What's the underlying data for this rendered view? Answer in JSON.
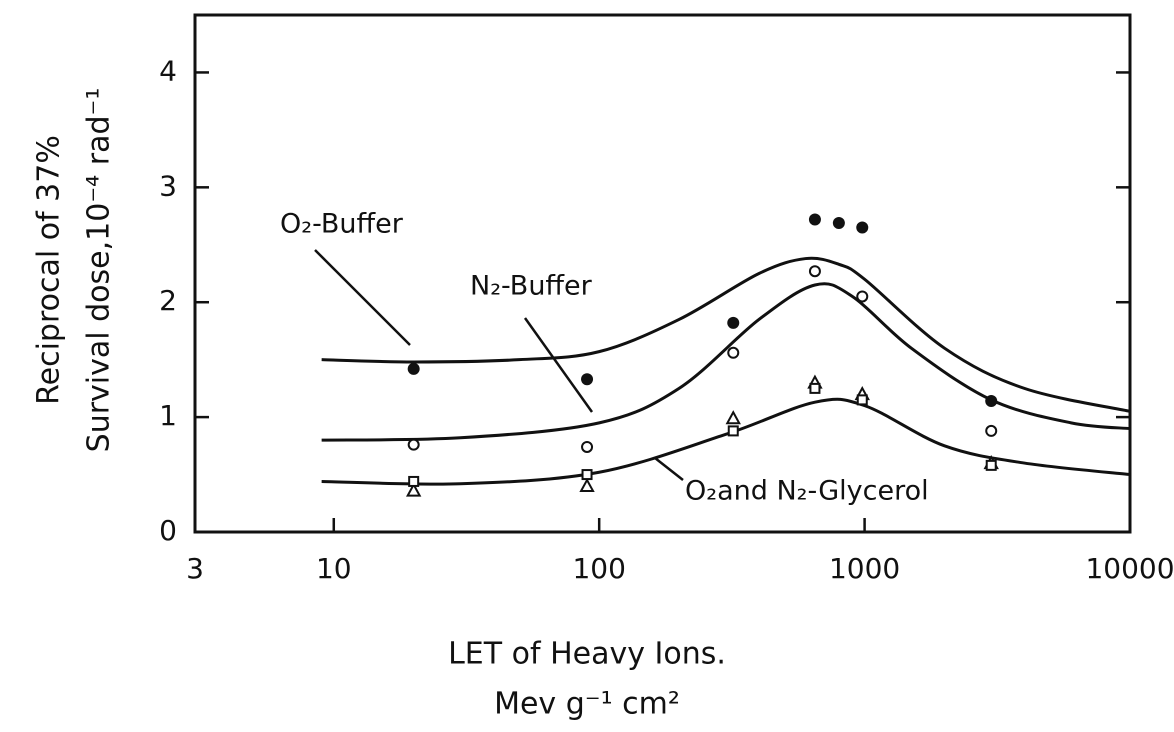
{
  "chart_data": {
    "type": "scatter",
    "x_label": [
      "LET of  Heavy Ions.",
      "Mev  g⁻¹ cm²"
    ],
    "y_label": [
      "Reciprocal of  37%",
      "Survival  dose,10⁻⁴ rad⁻¹"
    ],
    "x_log": true,
    "xlim": [
      3,
      10000
    ],
    "xticks": [
      3,
      10,
      100,
      1000,
      10000
    ],
    "ylim": [
      0,
      4.5
    ],
    "yticks": [
      0,
      1,
      2,
      3,
      4
    ],
    "color": "#111111",
    "curves": [
      {
        "name": "O₂-Buffer",
        "x": [
          9,
          20,
          50,
          100,
          200,
          400,
          600,
          800,
          1000,
          2000,
          4000,
          10000
        ],
        "values": [
          1.5,
          1.48,
          1.5,
          1.57,
          1.85,
          2.25,
          2.38,
          2.33,
          2.2,
          1.6,
          1.25,
          1.05
        ]
      },
      {
        "name": "N₂-Buffer",
        "x": [
          9,
          30,
          100,
          200,
          400,
          650,
          900,
          1500,
          3000,
          6000,
          10000
        ],
        "values": [
          0.8,
          0.82,
          0.95,
          1.25,
          1.85,
          2.15,
          2.05,
          1.6,
          1.15,
          0.95,
          0.9
        ]
      },
      {
        "name": "O₂and N₂-Glycerol",
        "x": [
          9,
          30,
          100,
          300,
          650,
          1000,
          2000,
          4000,
          10000
        ],
        "values": [
          0.44,
          0.42,
          0.52,
          0.85,
          1.13,
          1.1,
          0.75,
          0.6,
          0.5
        ]
      }
    ],
    "series": [
      {
        "marker": "filled-circle",
        "x": [
          20,
          90,
          320,
          650,
          800,
          980,
          3000
        ],
        "values": [
          1.42,
          1.33,
          1.82,
          2.72,
          2.69,
          2.65,
          1.14
        ]
      },
      {
        "marker": "open-circle",
        "x": [
          20,
          90,
          320,
          650,
          980,
          3000
        ],
        "values": [
          0.76,
          0.74,
          1.56,
          2.27,
          2.05,
          0.88
        ]
      },
      {
        "marker": "triangle",
        "x": [
          20,
          90,
          320,
          650,
          980,
          3000
        ],
        "values": [
          0.36,
          0.4,
          0.99,
          1.3,
          1.2,
          0.6
        ]
      },
      {
        "marker": "square",
        "x": [
          20,
          90,
          320,
          650,
          980,
          3000
        ],
        "values": [
          0.44,
          0.5,
          0.88,
          1.25,
          1.15,
          0.58
        ]
      }
    ]
  }
}
